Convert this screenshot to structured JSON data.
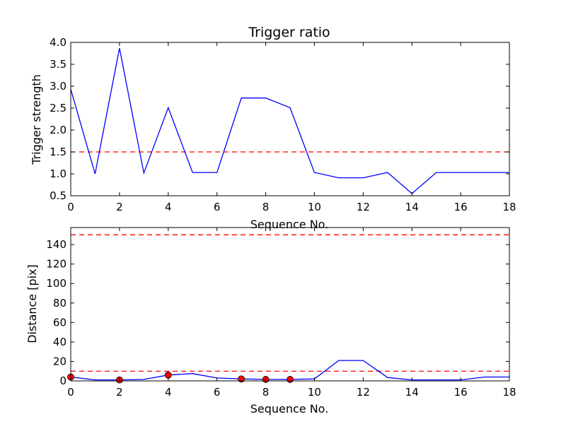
{
  "chart_data": [
    {
      "type": "line",
      "title": "Trigger ratio",
      "xlabel": "Sequence No.",
      "ylabel": "Trigger strength",
      "xlim": [
        0,
        18
      ],
      "ylim": [
        0.5,
        4.0
      ],
      "xticks": [
        "0",
        "2",
        "4",
        "6",
        "8",
        "10",
        "12",
        "14",
        "16",
        "18"
      ],
      "yticks": [
        "0.5",
        "1.0",
        "1.5",
        "2.0",
        "2.5",
        "3.0",
        "3.5",
        "4.0"
      ],
      "grid": false,
      "colors": {
        "line": "#0000ff",
        "threshold": "#ff0000"
      },
      "series": [
        {
          "x": [
            0,
            1,
            2,
            3,
            4,
            5,
            6,
            7,
            8,
            9,
            10,
            11,
            12,
            13,
            14,
            15,
            16,
            17,
            18
          ],
          "values": [
            2.93,
            1.0,
            3.87,
            1.02,
            2.51,
            1.03,
            1.03,
            2.73,
            2.73,
            2.51,
            1.03,
            0.91,
            0.91,
            1.03,
            0.55,
            1.03,
            1.03,
            1.03,
            1.03
          ]
        }
      ],
      "thresholds": [
        1.5
      ]
    },
    {
      "type": "line",
      "title": "",
      "xlabel": "Sequence No.",
      "ylabel": "Distance [pix]",
      "xlim": [
        0,
        18
      ],
      "ylim": [
        0,
        157.5
      ],
      "xticks": [
        "0",
        "2",
        "4",
        "6",
        "8",
        "10",
        "12",
        "14",
        "16",
        "18"
      ],
      "yticks": [
        "0",
        "20",
        "40",
        "60",
        "80",
        "100",
        "120",
        "140"
      ],
      "grid": false,
      "colors": {
        "line": "#0000ff",
        "threshold": "#ff0000",
        "marker": "#ff0000"
      },
      "series": [
        {
          "x": [
            0,
            1,
            2,
            3,
            4,
            5,
            6,
            7,
            8,
            9,
            10,
            11,
            12,
            13,
            14,
            15,
            16,
            17,
            18
          ],
          "values": [
            4,
            1,
            1,
            1.5,
            6,
            7.5,
            3,
            2,
            1.5,
            1.5,
            2,
            21,
            21,
            3.5,
            1,
            1,
            1,
            4,
            4
          ]
        }
      ],
      "markers": {
        "x": [
          0,
          2,
          4,
          7,
          8,
          9
        ],
        "values": [
          4,
          1,
          6,
          2,
          1.5,
          1.5
        ]
      },
      "thresholds": [
        10,
        150
      ]
    }
  ]
}
